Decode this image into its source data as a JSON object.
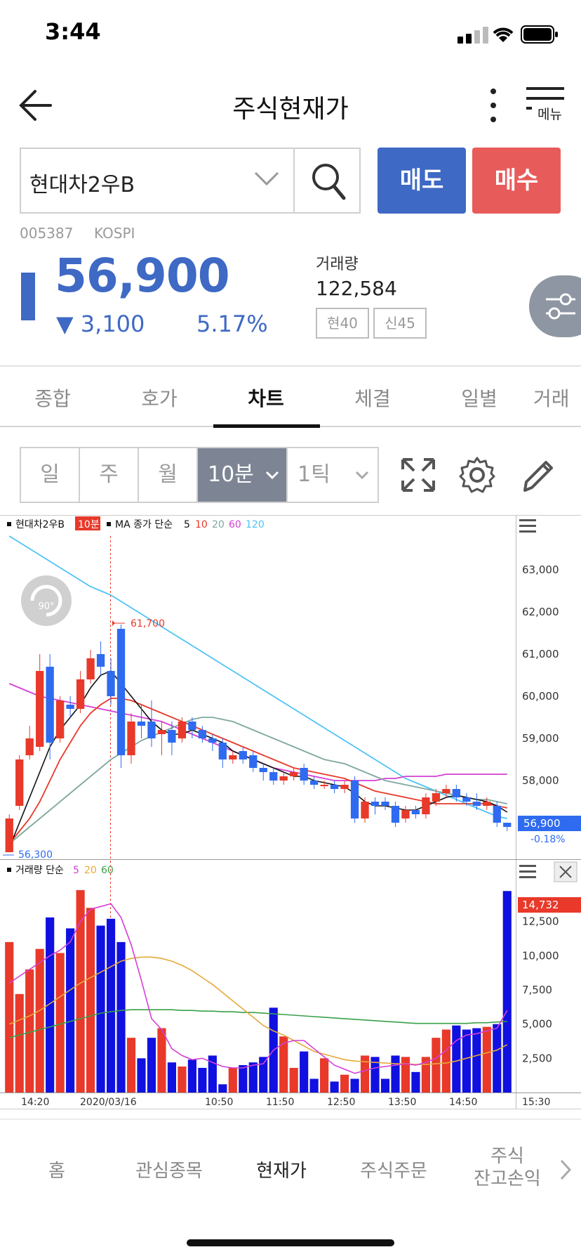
{
  "status_bar": {
    "time": "3:44"
  },
  "header": {
    "title": "주식현재가",
    "menu_label": "메뉴"
  },
  "search": {
    "stock_name": "현대차2우B"
  },
  "actions": {
    "sell_label": "매도",
    "buy_label": "매수"
  },
  "stock": {
    "code": "005387",
    "market": "KOSPI",
    "price": "56,900",
    "change": "▼ 3,100",
    "change_pct": "5.17%",
    "volume_label": "거래량",
    "volume": "122,584",
    "chips": [
      "현40",
      "신45"
    ]
  },
  "tabs": [
    "종합",
    "호가",
    "차트",
    "체결",
    "일별",
    "거래"
  ],
  "active_tab": "차트",
  "period": {
    "day": "일",
    "week": "주",
    "month": "월",
    "selected": "10분",
    "tick": "1틱"
  },
  "chart": {
    "legend_name": "현대차2우B",
    "legend_interval": "10분",
    "ma_legend": {
      "prefix": "MA 종가 단순",
      "p5": "5",
      "p10": "10",
      "p20": "20",
      "p60": "60",
      "p120": "120"
    },
    "vol_legend": {
      "prefix": "거래량 단순",
      "p5": "5",
      "p20": "20",
      "p60": "60"
    },
    "high_label": "61,700",
    "low_label": "56,300",
    "current_price_tag": "56,900",
    "current_change_tag": "-0.18%",
    "current_volume_tag": "14,732",
    "price_ticks": [
      "63,000",
      "62,000",
      "61,000",
      "60,000",
      "59,000",
      "58,000"
    ],
    "price_tick_values": [
      63000,
      62000,
      61000,
      60000,
      59000,
      58000
    ],
    "volume_ticks": [
      "12,500",
      "10,000",
      "7,500",
      "5,000",
      "2,500"
    ],
    "volume_tick_values": [
      12500,
      10000,
      7500,
      5000,
      2500
    ],
    "time_labels": [
      "14:20",
      "2020/03/16",
      "10:50",
      "11:50",
      "12:50",
      "13:50",
      "14:50",
      "15:30"
    ],
    "colors": {
      "up": "#e8392a",
      "down": "#2f6bf0",
      "ma5": "#111111",
      "ma10": "#e8392a",
      "ma20": "#7fa7a0",
      "ma60": "#d43fd6",
      "ma120": "#4fc3f7"
    }
  },
  "chart_data": {
    "type": "candlestick",
    "price_range": [
      56200,
      63800
    ],
    "volume_range": [
      0,
      15000
    ],
    "candles": [
      {
        "o": 56300,
        "c": 57100,
        "h": 57200,
        "l": 56300
      },
      {
        "o": 57400,
        "c": 58500,
        "h": 58600,
        "l": 57300
      },
      {
        "o": 58600,
        "c": 59000,
        "h": 59300,
        "l": 58500
      },
      {
        "o": 58800,
        "c": 60600,
        "h": 61000,
        "l": 58700
      },
      {
        "o": 60700,
        "c": 58900,
        "h": 61000,
        "l": 58500
      },
      {
        "o": 59000,
        "c": 59900,
        "h": 60000,
        "l": 58900
      },
      {
        "o": 59800,
        "c": 59700,
        "h": 60000,
        "l": 59500
      },
      {
        "o": 59700,
        "c": 60400,
        "h": 60600,
        "l": 59600
      },
      {
        "o": 60400,
        "c": 60900,
        "h": 61100,
        "l": 60300
      },
      {
        "o": 61000,
        "c": 60700,
        "h": 61300,
        "l": 60500
      },
      {
        "o": 60600,
        "c": 60000,
        "h": 60900,
        "l": 59800
      },
      {
        "o": 61600,
        "c": 58600,
        "h": 61700,
        "l": 58300
      },
      {
        "o": 58600,
        "c": 59400,
        "h": 59600,
        "l": 58400
      },
      {
        "o": 59400,
        "c": 59300,
        "h": 59800,
        "l": 59000
      },
      {
        "o": 59400,
        "c": 59000,
        "h": 59900,
        "l": 58800
      },
      {
        "o": 59100,
        "c": 59200,
        "h": 59400,
        "l": 58600
      },
      {
        "o": 59200,
        "c": 58900,
        "h": 59400,
        "l": 58600
      },
      {
        "o": 59000,
        "c": 59400,
        "h": 59500,
        "l": 58900
      },
      {
        "o": 59400,
        "c": 59200,
        "h": 59500,
        "l": 59000
      },
      {
        "o": 59200,
        "c": 59000,
        "h": 59300,
        "l": 58900
      },
      {
        "o": 59000,
        "c": 58900,
        "h": 59100,
        "l": 58700
      },
      {
        "o": 58900,
        "c": 58500,
        "h": 59000,
        "l": 58300
      },
      {
        "o": 58500,
        "c": 58600,
        "h": 58700,
        "l": 58400
      },
      {
        "o": 58700,
        "c": 58500,
        "h": 58800,
        "l": 58400
      },
      {
        "o": 58600,
        "c": 58300,
        "h": 58700,
        "l": 58200
      },
      {
        "o": 58300,
        "c": 58200,
        "h": 58400,
        "l": 58000
      },
      {
        "o": 58200,
        "c": 58000,
        "h": 58300,
        "l": 57900
      },
      {
        "o": 58000,
        "c": 58100,
        "h": 58200,
        "l": 57900
      },
      {
        "o": 58100,
        "c": 58200,
        "h": 58300,
        "l": 58000
      },
      {
        "o": 58300,
        "c": 58000,
        "h": 58400,
        "l": 57900
      },
      {
        "o": 58000,
        "c": 57900,
        "h": 58100,
        "l": 57800
      },
      {
        "o": 57900,
        "c": 57900,
        "h": 58000,
        "l": 57800
      },
      {
        "o": 57900,
        "c": 57800,
        "h": 58000,
        "l": 57700
      },
      {
        "o": 57800,
        "c": 57900,
        "h": 58000,
        "l": 57700
      },
      {
        "o": 58000,
        "c": 57100,
        "h": 58100,
        "l": 57000
      },
      {
        "o": 57100,
        "c": 57500,
        "h": 57600,
        "l": 57000
      },
      {
        "o": 57500,
        "c": 57400,
        "h": 57600,
        "l": 57200
      },
      {
        "o": 57500,
        "c": 57400,
        "h": 57600,
        "l": 57300
      },
      {
        "o": 57400,
        "c": 57000,
        "h": 57500,
        "l": 56900
      },
      {
        "o": 57100,
        "c": 57300,
        "h": 57400,
        "l": 57000
      },
      {
        "o": 57300,
        "c": 57200,
        "h": 57400,
        "l": 57100
      },
      {
        "o": 57200,
        "c": 57600,
        "h": 57700,
        "l": 57100
      },
      {
        "o": 57500,
        "c": 57700,
        "h": 57800,
        "l": 57400
      },
      {
        "o": 57700,
        "c": 57800,
        "h": 57900,
        "l": 57600
      },
      {
        "o": 57800,
        "c": 57600,
        "h": 57900,
        "l": 57500
      },
      {
        "o": 57600,
        "c": 57500,
        "h": 57700,
        "l": 57400
      },
      {
        "o": 57500,
        "c": 57400,
        "h": 57700,
        "l": 57300
      },
      {
        "o": 57400,
        "c": 57500,
        "h": 57600,
        "l": 57300
      },
      {
        "o": 57400,
        "c": 57000,
        "h": 57500,
        "l": 56900
      },
      {
        "o": 57000,
        "c": 56900,
        "h": 57000,
        "l": 56800
      }
    ],
    "volumes": [
      11000,
      7200,
      9000,
      10500,
      12800,
      10200,
      12000,
      14800,
      13500,
      12200,
      12700,
      11000,
      4000,
      2500,
      4000,
      4700,
      2200,
      1900,
      2400,
      1800,
      2700,
      600,
      1800,
      2000,
      2200,
      2600,
      6200,
      4100,
      1800,
      3000,
      1000,
      2500,
      800,
      1300,
      1000,
      2700,
      2600,
      1000,
      2700,
      2600,
      1500,
      2600,
      4000,
      4600,
      4900,
      4600,
      4700,
      4800,
      5000,
      14732
    ],
    "ma_series": {
      "ma5": [
        56400,
        57000,
        57600,
        58200,
        58800,
        59200,
        59500,
        59800,
        60200,
        60500,
        60600,
        60300,
        60000,
        59700,
        59400,
        59200,
        59100,
        59100,
        59200,
        59100,
        59000,
        58900,
        58700,
        58600,
        58500,
        58400,
        58300,
        58200,
        58100,
        58100,
        58000,
        57950,
        57900,
        57850,
        57700,
        57500,
        57400,
        57400,
        57350,
        57300,
        57300,
        57400,
        57500,
        57600,
        57650,
        57600,
        57550,
        57500,
        57400,
        57250
      ],
      "ma10": [
        56500,
        56800,
        57100,
        57500,
        58000,
        58500,
        58900,
        59300,
        59600,
        59800,
        59950,
        59950,
        59900,
        59800,
        59700,
        59600,
        59500,
        59400,
        59300,
        59200,
        59100,
        59000,
        58900,
        58800,
        58700,
        58600,
        58500,
        58400,
        58300,
        58250,
        58200,
        58150,
        58100,
        58050,
        57950,
        57850,
        57750,
        57700,
        57650,
        57600,
        57550,
        57500,
        57450,
        57450,
        57450,
        57450,
        57450,
        57450,
        57400,
        57350
      ],
      "ma20": [
        56500,
        56700,
        56900,
        57100,
        57300,
        57500,
        57700,
        57900,
        58100,
        58300,
        58500,
        58650,
        58800,
        58950,
        59050,
        59150,
        59250,
        59350,
        59450,
        59500,
        59500,
        59450,
        59400,
        59300,
        59200,
        59100,
        59000,
        58900,
        58800,
        58700,
        58600,
        58500,
        58450,
        58400,
        58300,
        58200,
        58100,
        58000,
        57950,
        57900,
        57850,
        57800,
        57750,
        57700,
        57650,
        57600,
        57550,
        57550,
        57500,
        57450
      ],
      "ma60": [
        60300,
        60200,
        60100,
        60000,
        59950,
        59900,
        59850,
        59800,
        59750,
        59700,
        59650,
        59600,
        59550,
        59500,
        59450,
        59400,
        59300,
        59200,
        59100,
        59000,
        58900,
        58800,
        58700,
        58600,
        58500,
        58400,
        58300,
        58250,
        58200,
        58150,
        58100,
        58050,
        58000,
        58000,
        58000,
        58000,
        58000,
        58050,
        58050,
        58100,
        58100,
        58100,
        58100,
        58150,
        58150,
        58150,
        58150,
        58150,
        58150,
        58150
      ],
      "ma120": [
        63800,
        63650,
        63500,
        63350,
        63200,
        63050,
        62900,
        62750,
        62600,
        62500,
        62400,
        62250,
        62100,
        61950,
        61800,
        61650,
        61500,
        61350,
        61200,
        61050,
        60900,
        60750,
        60600,
        60450,
        60300,
        60150,
        60000,
        59850,
        59700,
        59550,
        59400,
        59250,
        59100,
        58950,
        58800,
        58650,
        58500,
        58350,
        58200,
        58050,
        57950,
        57850,
        57750,
        57650,
        57550,
        57450,
        57350,
        57250,
        57150,
        57100
      ]
    },
    "vol_ma_series": {
      "ma5": [
        8000,
        8500,
        9000,
        9500,
        10000,
        10400,
        11000,
        12500,
        13400,
        13600,
        13800,
        12800,
        10800,
        8200,
        5400,
        4600,
        3200,
        2700,
        2400,
        2500,
        2200,
        1900,
        1800,
        1800,
        2000,
        2100,
        3100,
        3600,
        3800,
        3800,
        3200,
        2600,
        2000,
        1700,
        1400,
        1600,
        1800,
        1900,
        2000,
        2100,
        2000,
        2200,
        2500,
        3100,
        3800,
        4200,
        4300,
        4500,
        4700,
        6000
      ],
      "ma20": [
        5000,
        5300,
        5600,
        6000,
        6500,
        7000,
        7500,
        8000,
        8400,
        8800,
        9200,
        9600,
        9800,
        9900,
        9900,
        9800,
        9600,
        9300,
        8900,
        8400,
        7900,
        7300,
        6700,
        6100,
        5500,
        4900,
        4500,
        4200,
        3800,
        3400,
        3000,
        2800,
        2600,
        2400,
        2300,
        2250,
        2200,
        2150,
        2100,
        2100,
        2050,
        2050,
        2100,
        2150,
        2300,
        2500,
        2700,
        2900,
        3100,
        3500
      ],
      "ma60": [
        4000,
        4200,
        4400,
        4600,
        4800,
        5000,
        5200,
        5400,
        5600,
        5800,
        5900,
        6000,
        6050,
        6050,
        6050,
        6050,
        6050,
        6000,
        6000,
        5950,
        5950,
        5900,
        5900,
        5850,
        5850,
        5800,
        5750,
        5700,
        5650,
        5600,
        5550,
        5500,
        5450,
        5400,
        5350,
        5300,
        5250,
        5200,
        5150,
        5100,
        5050,
        5050,
        5050,
        5050,
        5050,
        5050,
        5100,
        5100,
        5150,
        5200
      ]
    }
  }
}
